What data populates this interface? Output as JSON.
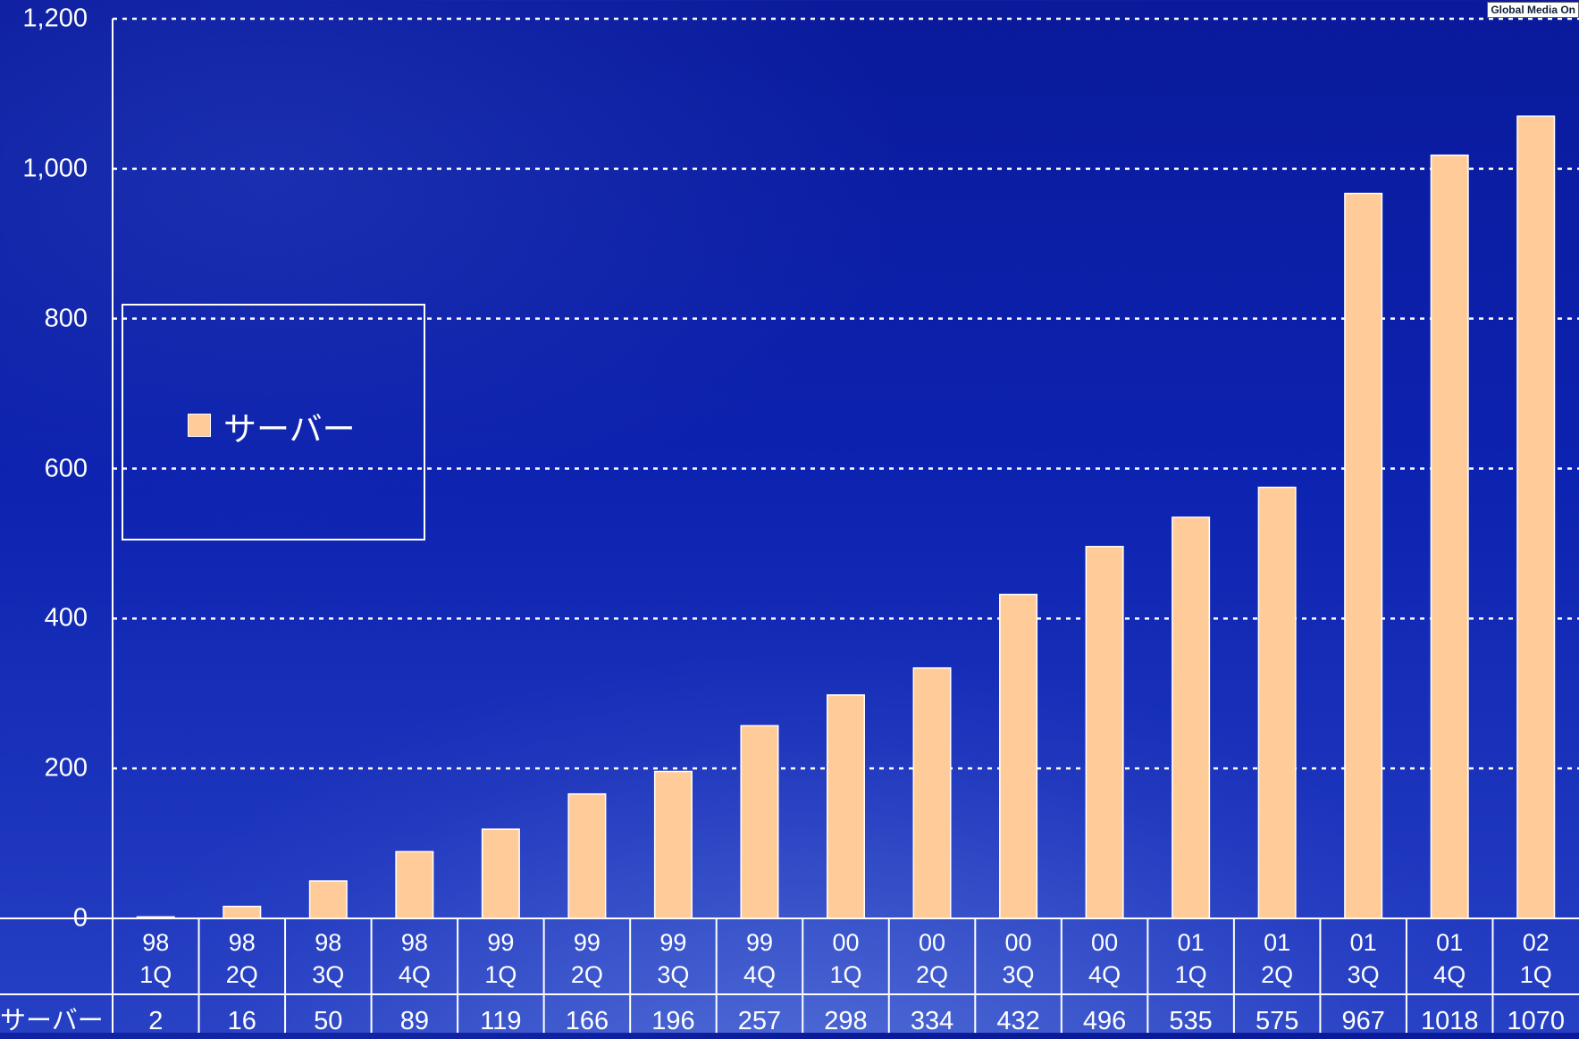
{
  "chart_data": {
    "type": "bar",
    "watermark": "Global Media On",
    "categories": [
      "98\n1Q",
      "98\n2Q",
      "98\n3Q",
      "98\n4Q",
      "99\n1Q",
      "99\n2Q",
      "99\n3Q",
      "99\n4Q",
      "00\n1Q",
      "00\n2Q",
      "00\n3Q",
      "00\n4Q",
      "01\n1Q",
      "01\n2Q",
      "01\n3Q",
      "01\n4Q",
      "02\n1Q"
    ],
    "series": [
      {
        "name": "サーバー",
        "color": "#ffcc99",
        "values": [
          2,
          16,
          50,
          89,
          119,
          166,
          196,
          257,
          298,
          334,
          432,
          496,
          535,
          575,
          967,
          1018,
          1070
        ]
      }
    ],
    "ylim": [
      0,
      1200
    ],
    "yticks": [
      0,
      200,
      400,
      600,
      800,
      {
        "value": 1000,
        "label": "1,000"
      },
      {
        "value": 1200,
        "label": "1,200"
      }
    ],
    "grid": true
  }
}
